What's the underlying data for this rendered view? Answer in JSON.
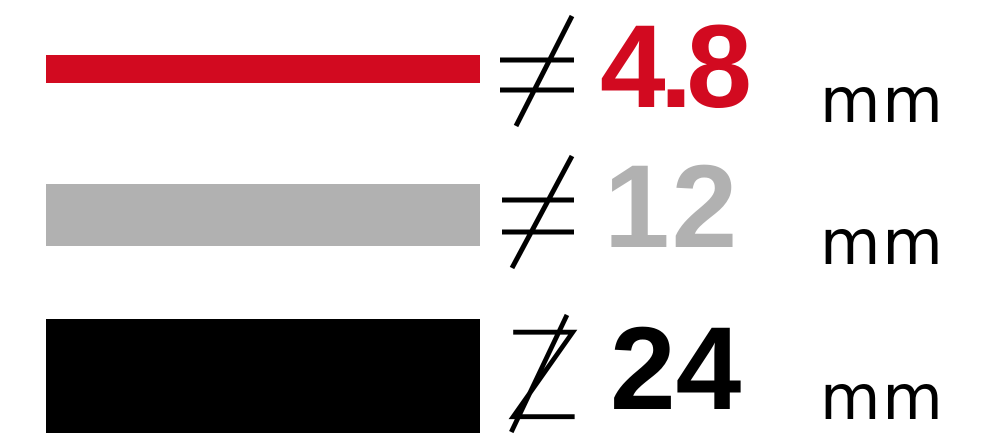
{
  "colors": {
    "red": "#d20a20",
    "gray": "#b1b1b1",
    "black": "#000000"
  },
  "rows": [
    {
      "symbol": "not-equal",
      "value": "4.8",
      "unit": "mm",
      "color": "#d20a20"
    },
    {
      "symbol": "not-equal",
      "value": "12",
      "unit": "mm",
      "color": "#b1b1b1"
    },
    {
      "symbol": "slashed-z",
      "value": "24",
      "unit": "mm",
      "color": "#000000"
    }
  ]
}
